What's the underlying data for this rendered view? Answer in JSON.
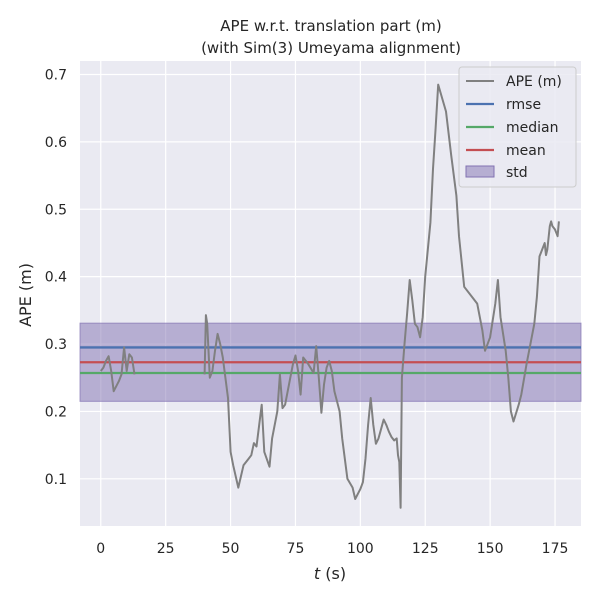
{
  "chart_data": {
    "type": "line",
    "title_line1": "APE w.r.t. translation part (m)",
    "title_line2": "(with Sim(3) Umeyama alignment)",
    "xlabel_var": "t",
    "xlabel_unit": " (s)",
    "ylabel": "APE (m)",
    "xlim": [
      -8,
      185
    ],
    "ylim": [
      0.03,
      0.72
    ],
    "xticks": [
      0,
      25,
      50,
      75,
      100,
      125,
      150,
      175
    ],
    "yticks": [
      0.1,
      0.2,
      0.3,
      0.4,
      0.5,
      0.6,
      0.7
    ],
    "grid": true,
    "legend_position": "top-right",
    "colors": {
      "background": "#eaeaf2",
      "grid": "#ffffff",
      "ape": "#808080",
      "rmse": "#4c72b0",
      "median": "#55a868",
      "mean": "#c44e52",
      "std": "#8172b2"
    },
    "legend": [
      {
        "label": "APE (m)",
        "kind": "line",
        "color": "#808080"
      },
      {
        "label": "rmse",
        "kind": "line",
        "color": "#4c72b0"
      },
      {
        "label": "median",
        "kind": "line",
        "color": "#55a868"
      },
      {
        "label": "mean",
        "kind": "line",
        "color": "#c44e52"
      },
      {
        "label": "std",
        "kind": "patch",
        "color": "#8172b2"
      }
    ],
    "stats": {
      "rmse": 0.295,
      "median": 0.257,
      "mean": 0.273,
      "std_band": [
        0.215,
        0.331
      ]
    },
    "series": [
      {
        "name": "APE (m)",
        "segments": [
          [
            [
              0,
              0.26
            ],
            [
              1,
              0.265
            ],
            [
              2,
              0.275
            ],
            [
              3,
              0.282
            ],
            [
              4,
              0.26
            ],
            [
              5,
              0.23
            ],
            [
              7,
              0.245
            ],
            [
              8,
              0.255
            ],
            [
              9,
              0.295
            ],
            [
              10,
              0.26
            ],
            [
              11,
              0.285
            ],
            [
              12,
              0.28
            ],
            [
              13,
              0.255
            ]
          ],
          [
            [
              40,
              0.255
            ],
            [
              40.5,
              0.343
            ],
            [
              41,
              0.33
            ],
            [
              42,
              0.25
            ],
            [
              43,
              0.26
            ],
            [
              44,
              0.29
            ],
            [
              45,
              0.315
            ],
            [
              46,
              0.3
            ],
            [
              47,
              0.28
            ],
            [
              48,
              0.25
            ],
            [
              49,
              0.22
            ],
            [
              50,
              0.14
            ],
            [
              51,
              0.12
            ],
            [
              53,
              0.087
            ],
            [
              55,
              0.12
            ],
            [
              57,
              0.13
            ],
            [
              58,
              0.135
            ],
            [
              59,
              0.153
            ],
            [
              60,
              0.148
            ],
            [
              62,
              0.21
            ],
            [
              63,
              0.14
            ],
            [
              65,
              0.118
            ],
            [
              66,
              0.16
            ],
            [
              68,
              0.2
            ],
            [
              69,
              0.255
            ],
            [
              70,
              0.205
            ],
            [
              71,
              0.21
            ],
            [
              73,
              0.25
            ],
            [
              74,
              0.27
            ],
            [
              75,
              0.283
            ],
            [
              76,
              0.26
            ],
            [
              77,
              0.225
            ],
            [
              78,
              0.28
            ],
            [
              79,
              0.275
            ],
            [
              80,
              0.27
            ],
            [
              82,
              0.257
            ],
            [
              83,
              0.297
            ],
            [
              84,
              0.25
            ],
            [
              85,
              0.198
            ],
            [
              86,
              0.24
            ],
            [
              87,
              0.265
            ],
            [
              88,
              0.275
            ],
            [
              89,
              0.26
            ],
            [
              90,
              0.23
            ],
            [
              92,
              0.2
            ],
            [
              93,
              0.16
            ],
            [
              95,
              0.1
            ],
            [
              97,
              0.087
            ],
            [
              98,
              0.07
            ],
            [
              100,
              0.085
            ],
            [
              101,
              0.095
            ],
            [
              102,
              0.13
            ],
            [
              103,
              0.18
            ],
            [
              104,
              0.22
            ],
            [
              105,
              0.18
            ],
            [
              106,
              0.152
            ],
            [
              107,
              0.16
            ],
            [
              109,
              0.188
            ],
            [
              110,
              0.18
            ],
            [
              111,
              0.17
            ],
            [
              112,
              0.162
            ],
            [
              113,
              0.157
            ],
            [
              114,
              0.16
            ],
            [
              114.5,
              0.135
            ],
            [
              115,
              0.125
            ],
            [
              115.5,
              0.057
            ],
            [
              116,
              0.25
            ],
            [
              117,
              0.3
            ],
            [
              118,
              0.345
            ],
            [
              119,
              0.395
            ],
            [
              120,
              0.365
            ],
            [
              121,
              0.33
            ],
            [
              122,
              0.325
            ],
            [
              123,
              0.31
            ],
            [
              124,
              0.34
            ],
            [
              125,
              0.4
            ],
            [
              127,
              0.48
            ],
            [
              128,
              0.56
            ],
            [
              129,
              0.62
            ],
            [
              130,
              0.685
            ],
            [
              133,
              0.645
            ],
            [
              135,
              0.58
            ],
            [
              137,
              0.52
            ],
            [
              138,
              0.46
            ],
            [
              140,
              0.385
            ],
            [
              143,
              0.37
            ],
            [
              145,
              0.36
            ],
            [
              147,
              0.32
            ],
            [
              148,
              0.29
            ],
            [
              150,
              0.31
            ],
            [
              152,
              0.36
            ],
            [
              153,
              0.395
            ],
            [
              154,
              0.34
            ],
            [
              156,
              0.29
            ],
            [
              157,
              0.25
            ],
            [
              158,
              0.2
            ],
            [
              159,
              0.185
            ],
            [
              161,
              0.21
            ],
            [
              162,
              0.225
            ],
            [
              164,
              0.27
            ],
            [
              166,
              0.31
            ],
            [
              167,
              0.33
            ],
            [
              168,
              0.37
            ],
            [
              169,
              0.43
            ],
            [
              171,
              0.45
            ],
            [
              171.5,
              0.432
            ],
            [
              172,
              0.44
            ],
            [
              173,
              0.475
            ],
            [
              173.5,
              0.482
            ],
            [
              174,
              0.475
            ],
            [
              175,
              0.47
            ],
            [
              176,
              0.46
            ],
            [
              176.5,
              0.482
            ]
          ]
        ]
      }
    ]
  }
}
